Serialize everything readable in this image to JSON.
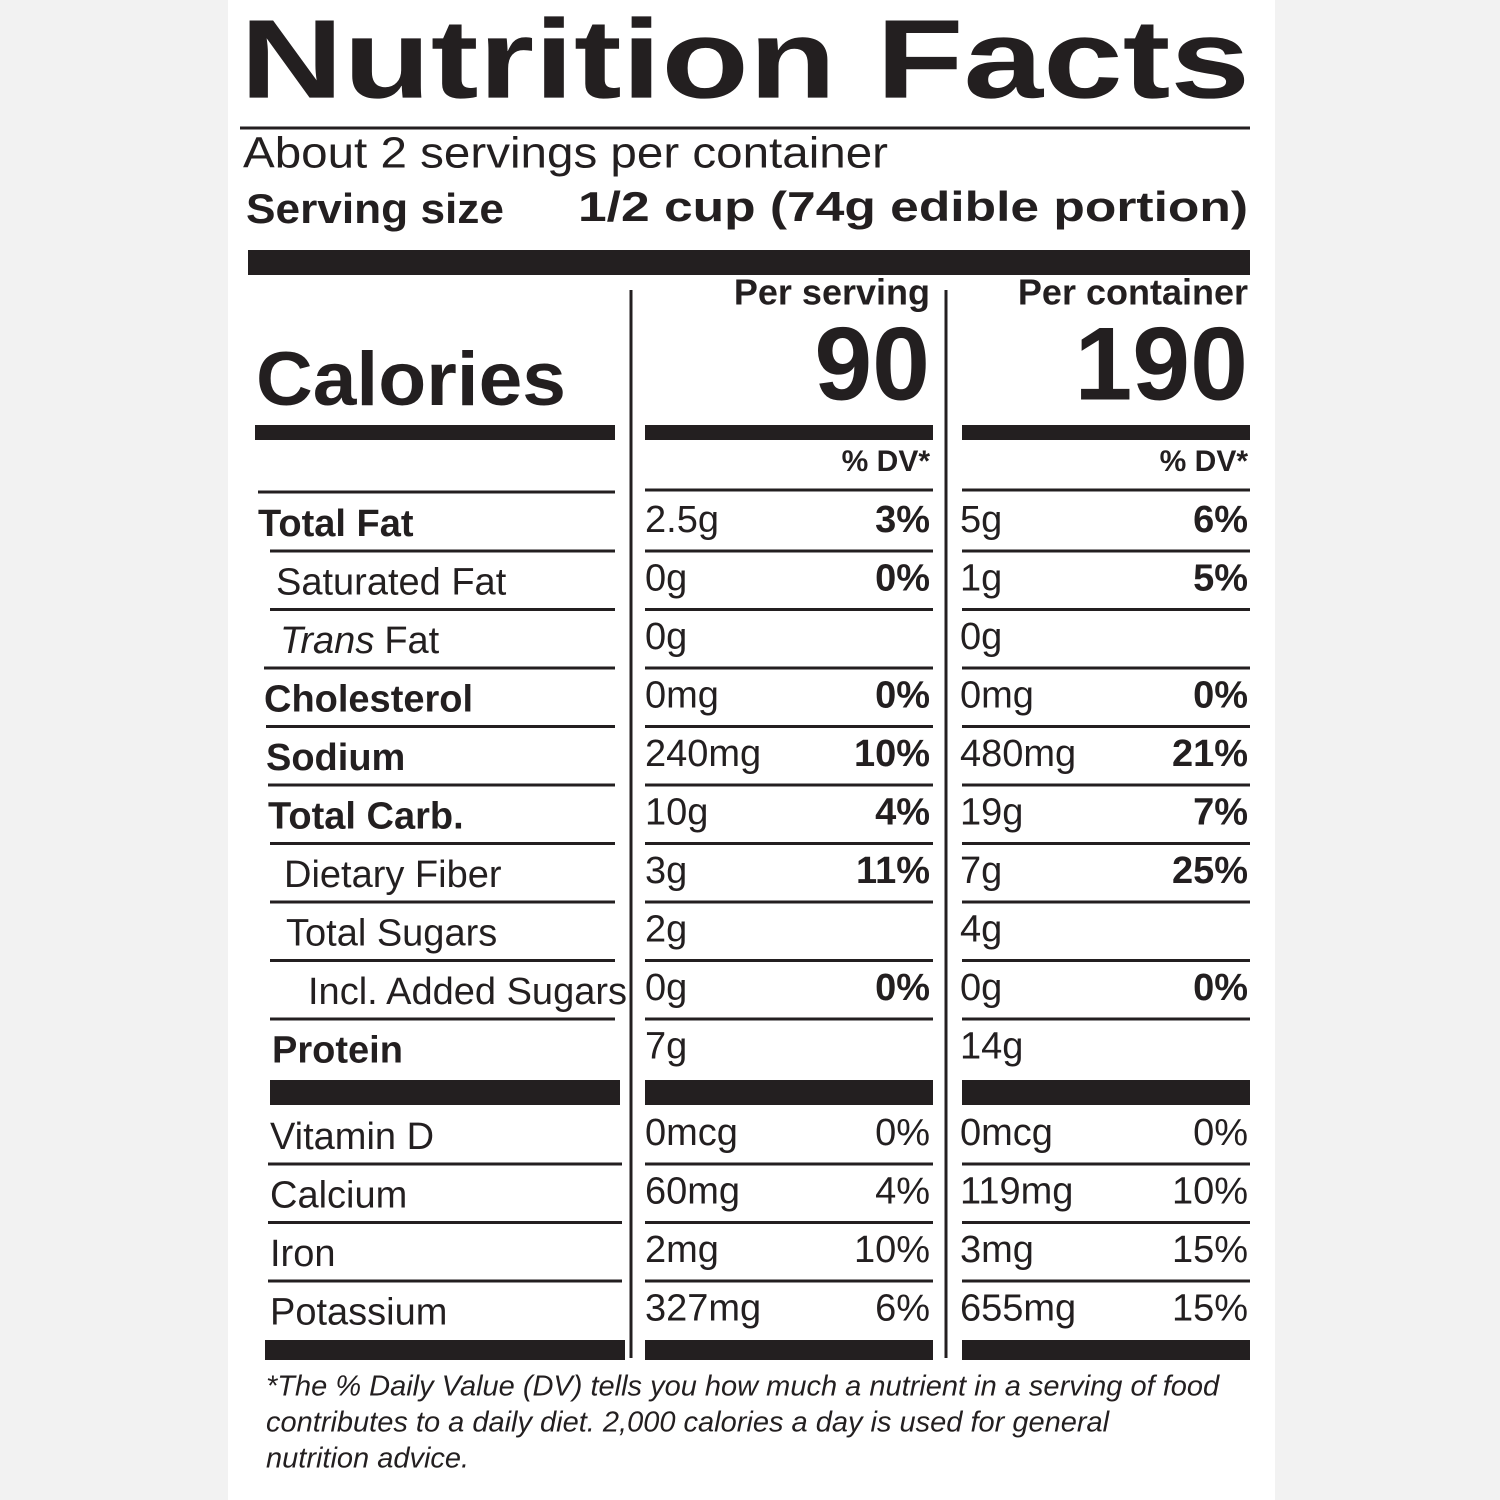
{
  "label": {
    "title": "Nutrition Facts",
    "servings": "About 2 servings per container",
    "serving_size_label": "Serving size",
    "serving_size_value": "1/2 cup (74g edible portion)",
    "calories_label": "Calories",
    "columns": [
      {
        "heading": "Per serving",
        "calories": "90",
        "dv_heading": "% DV*"
      },
      {
        "heading": "Per container",
        "calories": "190",
        "dv_heading": "% DV*"
      }
    ],
    "nutrients": [
      {
        "name": "Total Fat",
        "values": [
          [
            "2.5g",
            "3%"
          ],
          [
            "5g",
            "6%"
          ]
        ]
      },
      {
        "name": "Saturated Fat",
        "values": [
          [
            "0g",
            "0%"
          ],
          [
            "1g",
            "5%"
          ]
        ]
      },
      {
        "name_italic": "Trans",
        "name": "Fat",
        "values": [
          [
            "0g",
            null
          ],
          [
            "0g",
            null
          ]
        ]
      },
      {
        "name": "Cholesterol",
        "values": [
          [
            "0mg",
            "0%"
          ],
          [
            "0mg",
            "0%"
          ]
        ]
      },
      {
        "name": "Sodium",
        "values": [
          [
            "240mg",
            "10%"
          ],
          [
            "480mg",
            "21%"
          ]
        ]
      },
      {
        "name": "Total Carb.",
        "values": [
          [
            "10g",
            "4%"
          ],
          [
            "19g",
            "7%"
          ]
        ]
      },
      {
        "name": "Dietary Fiber",
        "values": [
          [
            "3g",
            "11%"
          ],
          [
            "7g",
            "25%"
          ]
        ]
      },
      {
        "name": "Total Sugars",
        "values": [
          [
            "2g",
            null
          ],
          [
            "4g",
            null
          ]
        ]
      },
      {
        "name": "Incl. Added Sugars",
        "values": [
          [
            "0g",
            "0%"
          ],
          [
            "0g",
            "0%"
          ]
        ]
      },
      {
        "name": "Protein",
        "values": [
          [
            "7g",
            null
          ],
          [
            "14g",
            null
          ]
        ]
      }
    ],
    "vitamins": [
      {
        "name": "Vitamin D",
        "values": [
          [
            "0mcg",
            "0%"
          ],
          [
            "0mcg",
            "0%"
          ]
        ]
      },
      {
        "name": "Calcium",
        "values": [
          [
            "60mg",
            "4%"
          ],
          [
            "119mg",
            "10%"
          ]
        ]
      },
      {
        "name": "Iron",
        "values": [
          [
            "2mg",
            "10%"
          ],
          [
            "3mg",
            "15%"
          ]
        ]
      },
      {
        "name": "Potassium",
        "values": [
          [
            "327mg",
            "6%"
          ],
          [
            "655mg",
            "15%"
          ]
        ]
      }
    ],
    "footnote": [
      "*The % Daily Value (DV) tells you how much a nutrient in a serving of food",
      "contributes to a daily diet. 2,000 calories a day is used for general",
      "nutrition advice."
    ]
  }
}
